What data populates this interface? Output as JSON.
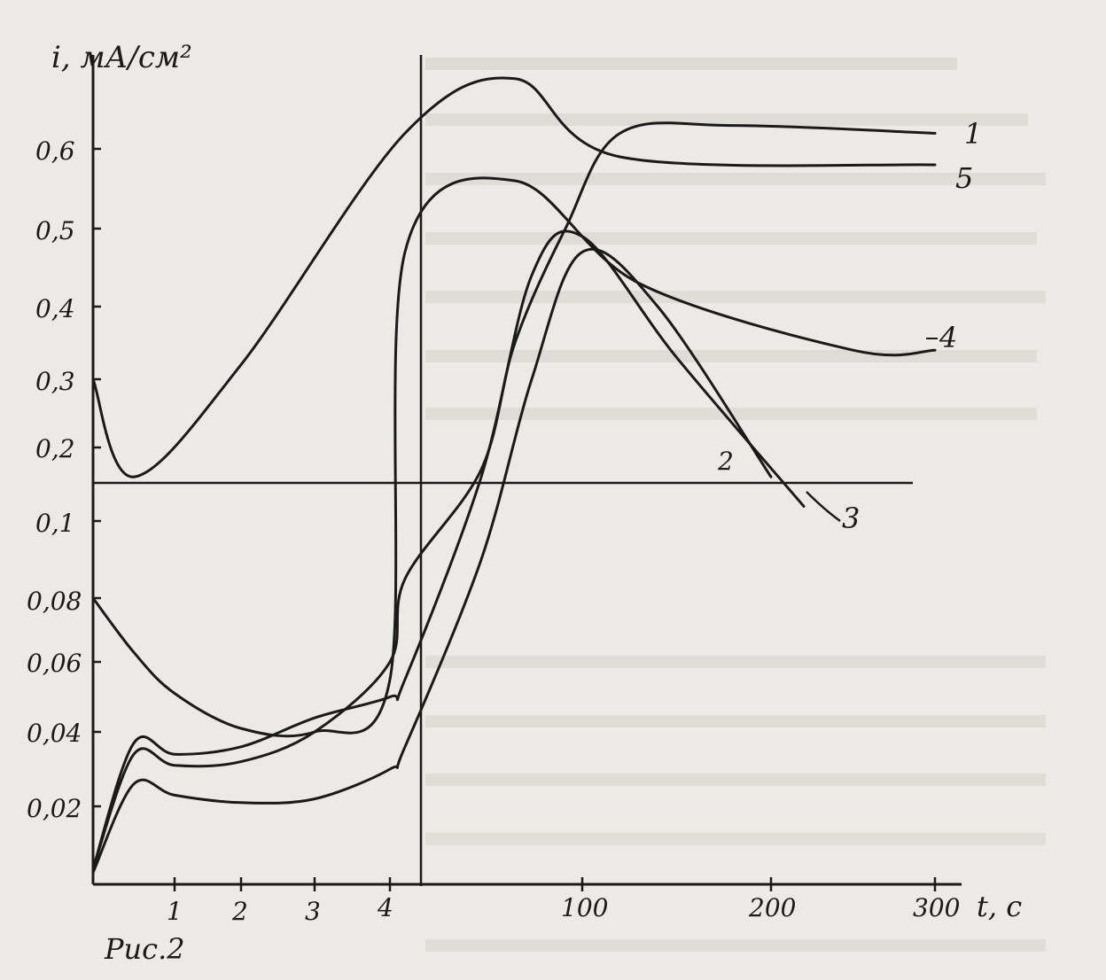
{
  "chart_data": {
    "type": "line",
    "title": "",
    "caption": "Рис.2",
    "ylabel": "i, мА/см²",
    "xlabel": "t, с",
    "x_axis": {
      "first_segment_ticks": [
        "1",
        "2",
        "3",
        "4"
      ],
      "second_segment_ticks": [
        "100",
        "200",
        "300"
      ]
    },
    "y_axis": {
      "lower_segment_ticks": [
        "0,02",
        "0,04",
        "0,06",
        "0,08",
        "0,1"
      ],
      "upper_segment_ticks": [
        "0,2",
        "0,3",
        "0,4",
        "0,5",
        "0,6"
      ]
    },
    "series": [
      {
        "name": "1",
        "points": [
          [
            0,
            0.004
          ],
          [
            0.5,
            0.034
          ],
          [
            1,
            0.031
          ],
          [
            2,
            0.032
          ],
          [
            3,
            0.04
          ],
          [
            4,
            0.06
          ],
          [
            4.2,
            0.085
          ],
          [
            40,
            0.17
          ],
          [
            60,
            0.35
          ],
          [
            90,
            0.5
          ],
          [
            120,
            0.62
          ],
          [
            180,
            0.63
          ],
          [
            300,
            0.62
          ]
        ]
      },
      {
        "name": "2",
        "points": [
          [
            0,
            0.003
          ],
          [
            0.5,
            0.026
          ],
          [
            1,
            0.023
          ],
          [
            2,
            0.021
          ],
          [
            3,
            0.022
          ],
          [
            4,
            0.03
          ],
          [
            4.2,
            0.036
          ],
          [
            40,
            0.09
          ],
          [
            70,
            0.3
          ],
          [
            100,
            0.47
          ],
          [
            140,
            0.4
          ],
          [
            200,
            0.16
          ]
        ]
      },
      {
        "name": "3",
        "points": [
          [
            0,
            0.004
          ],
          [
            0.5,
            0.037
          ],
          [
            1,
            0.034
          ],
          [
            2,
            0.036
          ],
          [
            3,
            0.044
          ],
          [
            4,
            0.05
          ],
          [
            4.2,
            0.055
          ],
          [
            40,
            0.16
          ],
          [
            70,
            0.44
          ],
          [
            100,
            0.49
          ],
          [
            150,
            0.33
          ],
          [
            220,
            0.12
          ]
        ]
      },
      {
        "name": "4",
        "points": [
          [
            0,
            0.08
          ],
          [
            0.5,
            0.063
          ],
          [
            1,
            0.051
          ],
          [
            2,
            0.041
          ],
          [
            3,
            0.04
          ],
          [
            4,
            0.055
          ],
          [
            4.2,
            0.47
          ],
          [
            60,
            0.56
          ],
          [
            130,
            0.43
          ],
          [
            250,
            0.34
          ],
          [
            300,
            0.34
          ]
        ]
      },
      {
        "name": "5",
        "points": [
          [
            0,
            0.3
          ],
          [
            0.5,
            0.16
          ],
          [
            2,
            0.32
          ],
          [
            4.2,
            0.62
          ],
          [
            60,
            0.69
          ],
          [
            120,
            0.59
          ],
          [
            300,
            0.58
          ]
        ]
      }
    ],
    "grid": false,
    "legend": "labels-at-curve-ends"
  }
}
